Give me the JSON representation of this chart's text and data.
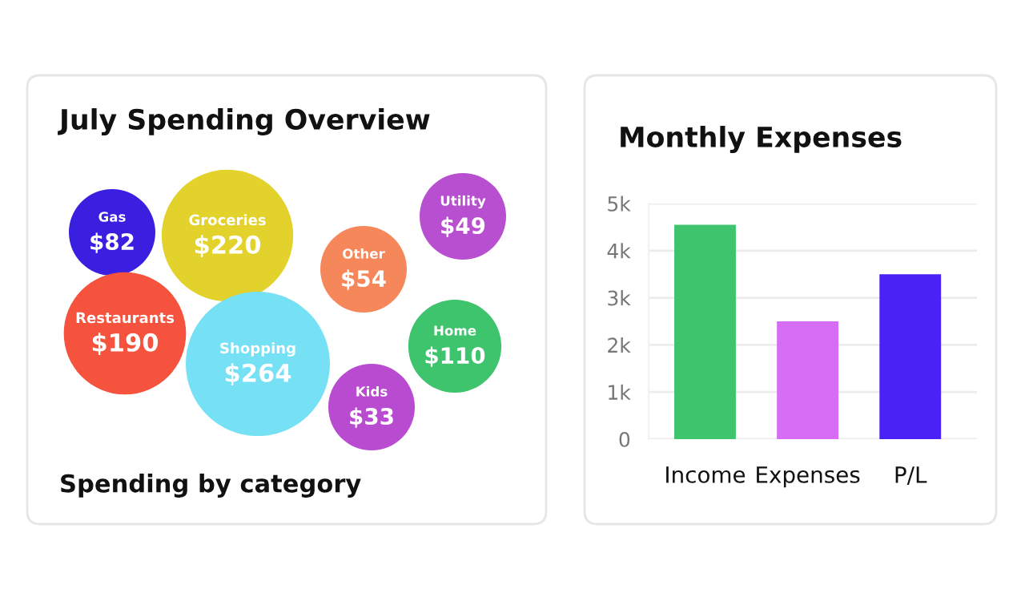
{
  "chart_data": [
    {
      "type": "other",
      "title": "July Spending Overview",
      "annotations": [
        "Spending by category"
      ],
      "categories": [
        "Gas",
        "Groceries",
        "Restaurants",
        "Shopping",
        "Other",
        "Utility",
        "Home",
        "Kids"
      ],
      "values": [
        82,
        220,
        190,
        264,
        54,
        49,
        110,
        33
      ],
      "value_labels": [
        "$82",
        "$220",
        "$190",
        "$264",
        "$54",
        "$49",
        "$110",
        "$33"
      ],
      "colors": [
        "#3a1fe0",
        "#e3d22c",
        "#f5533d",
        "#76e0f5",
        "#f5875a",
        "#b84fd0",
        "#3ec46d",
        "#b94bd0"
      ]
    },
    {
      "type": "bar",
      "title": "Monthly Expenses",
      "categories": [
        "Income",
        "Expenses",
        "P/L"
      ],
      "values": [
        4550,
        2500,
        3500
      ],
      "colors": [
        "#3ec46d",
        "#d86df5",
        "#4a22f5"
      ],
      "ylim": [
        0,
        5000
      ],
      "yticks": [
        0,
        {
          "value": 1000,
          "label": "1k"
        },
        {
          "value": 2000,
          "label": "2k"
        },
        {
          "value": 3000,
          "label": "3k"
        },
        {
          "value": 4000,
          "label": "4k"
        },
        {
          "value": 5000,
          "label": "5k"
        }
      ],
      "grid": "y"
    }
  ]
}
